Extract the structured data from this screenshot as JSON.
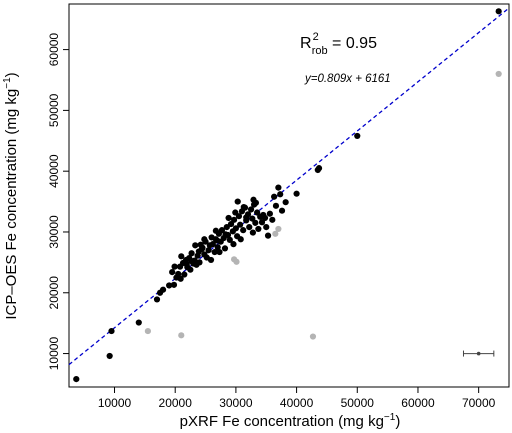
{
  "chart_data": {
    "type": "scatter",
    "xlabel": {
      "main": "pXRF Fe concentration (mg kg",
      "sup": "−1",
      "close": ")"
    },
    "ylabel": {
      "main": "ICP–OES Fe concentration (mg kg",
      "sup": "−1",
      "close": ")"
    },
    "xlim": [
      2500,
      75000
    ],
    "ylim": [
      4500,
      67500
    ],
    "xticks": [
      10000,
      20000,
      30000,
      40000,
      50000,
      60000,
      70000
    ],
    "xtick_labels": [
      "10000",
      "20000",
      "30000",
      "40000",
      "50000",
      "60000",
      "70000"
    ],
    "yticks": [
      10000,
      20000,
      30000,
      40000,
      50000,
      60000
    ],
    "ytick_labels": [
      "10000",
      "20000",
      "30000",
      "40000",
      "50000",
      "60000"
    ],
    "grid": false,
    "r2_annotation": {
      "base": "R",
      "sup": "2",
      "sub": "rob",
      "rest": " = 0.95"
    },
    "equation": "y=0.809x + 6161",
    "regression": {
      "slope": 0.809,
      "intercept": 6161,
      "color": "#0000cc",
      "dash": true
    },
    "series": [
      {
        "color": "#000000",
        "points": [
          [
            3700,
            5800
          ],
          [
            9200,
            9600
          ],
          [
            9500,
            13700
          ],
          [
            14000,
            15100
          ],
          [
            17000,
            18900
          ],
          [
            17500,
            20000
          ],
          [
            18000,
            20500
          ],
          [
            19000,
            21200
          ],
          [
            19500,
            23400
          ],
          [
            19800,
            21300
          ],
          [
            20200,
            22500
          ],
          [
            20500,
            23100
          ],
          [
            20800,
            24300
          ],
          [
            21000,
            26000
          ],
          [
            21300,
            24900
          ],
          [
            21500,
            23000
          ],
          [
            21800,
            25400
          ],
          [
            22000,
            24200
          ],
          [
            22300,
            25700
          ],
          [
            22500,
            23800
          ],
          [
            22700,
            26500
          ],
          [
            23000,
            24800
          ],
          [
            23200,
            25300
          ],
          [
            23500,
            24600
          ],
          [
            23700,
            26100
          ],
          [
            24000,
            25000
          ],
          [
            24200,
            27900
          ],
          [
            24500,
            27400
          ],
          [
            24800,
            26300
          ],
          [
            25000,
            28400
          ],
          [
            25200,
            25800
          ],
          [
            25500,
            27000
          ],
          [
            25700,
            27800
          ],
          [
            26000,
            29100
          ],
          [
            26200,
            28000
          ],
          [
            26500,
            26700
          ],
          [
            26700,
            28800
          ],
          [
            27000,
            27500
          ],
          [
            27200,
            29700
          ],
          [
            27500,
            28400
          ],
          [
            27700,
            30300
          ],
          [
            28000,
            29000
          ],
          [
            28200,
            27300
          ],
          [
            28500,
            30800
          ],
          [
            28700,
            29500
          ],
          [
            29000,
            28700
          ],
          [
            29200,
            31300
          ],
          [
            29500,
            30100
          ],
          [
            29700,
            32000
          ],
          [
            30000,
            30600
          ],
          [
            30200,
            29300
          ],
          [
            30500,
            32600
          ],
          [
            30700,
            31200
          ],
          [
            31000,
            33400
          ],
          [
            31200,
            30300
          ],
          [
            31500,
            34000
          ],
          [
            31700,
            31900
          ],
          [
            32000,
            32900
          ],
          [
            32200,
            30800
          ],
          [
            32500,
            33700
          ],
          [
            32700,
            32200
          ],
          [
            33000,
            34500
          ],
          [
            33200,
            31500
          ],
          [
            33500,
            33200
          ],
          [
            33700,
            30500
          ],
          [
            34000,
            32500
          ],
          [
            34300,
            31600
          ],
          [
            34500,
            32800
          ],
          [
            35000,
            30800
          ],
          [
            35300,
            29400
          ],
          [
            35600,
            33000
          ],
          [
            36000,
            32000
          ],
          [
            36300,
            35800
          ],
          [
            36600,
            34300
          ],
          [
            37000,
            37300
          ],
          [
            37300,
            36200
          ],
          [
            37600,
            33500
          ],
          [
            38200,
            34900
          ],
          [
            40000,
            36300
          ],
          [
            43500,
            40200
          ],
          [
            43700,
            40500
          ],
          [
            50000,
            45800
          ],
          [
            73300,
            66300
          ],
          [
            30300,
            35000
          ],
          [
            31300,
            34100
          ],
          [
            28800,
            32300
          ],
          [
            26700,
            30200
          ],
          [
            24800,
            28800
          ],
          [
            23300,
            27800
          ],
          [
            22700,
            25200
          ],
          [
            25900,
            25400
          ],
          [
            27300,
            26700
          ],
          [
            29600,
            28000
          ],
          [
            30800,
            28800
          ],
          [
            32800,
            29900
          ],
          [
            34800,
            32300
          ],
          [
            33300,
            34800
          ],
          [
            31700,
            32400
          ],
          [
            28300,
            29600
          ],
          [
            26900,
            28600
          ],
          [
            24400,
            27200
          ],
          [
            21900,
            24700
          ],
          [
            20900,
            22300
          ],
          [
            19900,
            24300
          ],
          [
            23900,
            26800
          ],
          [
            29900,
            33200
          ],
          [
            32900,
            35300
          ]
        ]
      },
      {
        "color": "#b4b4b4",
        "points": [
          [
            15500,
            13700
          ],
          [
            21000,
            13000
          ],
          [
            29700,
            25500
          ],
          [
            30100,
            25100
          ],
          [
            36500,
            29700
          ],
          [
            37000,
            30500
          ],
          [
            42700,
            12800
          ],
          [
            73300,
            56000
          ]
        ]
      }
    ],
    "error_bar": {
      "x": 70000,
      "y": 10000,
      "xerr": 2500,
      "color": "#444444"
    }
  }
}
